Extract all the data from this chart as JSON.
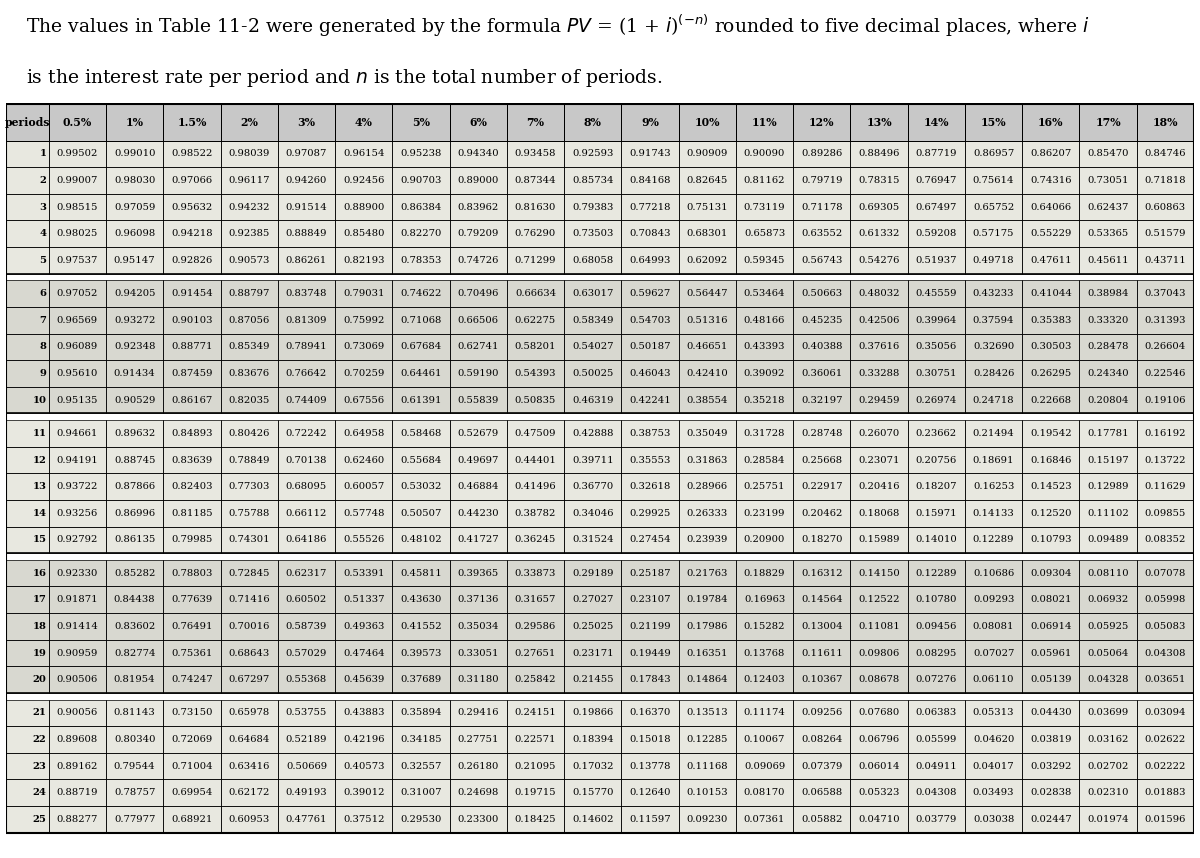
{
  "col_headers": [
    "periods",
    "0.5%",
    "1%",
    "1.5%",
    "2%",
    "3%",
    "4%",
    "5%",
    "6%",
    "7%",
    "8%",
    "9%",
    "10%",
    "11%",
    "12%",
    "13%",
    "14%",
    "15%",
    "16%",
    "17%",
    "18%"
  ],
  "row_data": [
    [
      1,
      0.99502,
      0.9901,
      0.98522,
      0.98039,
      0.97087,
      0.96154,
      0.95238,
      0.9434,
      0.93458,
      0.92593,
      0.91743,
      0.90909,
      0.9009,
      0.89286,
      0.88496,
      0.87719,
      0.86957,
      0.86207,
      0.8547,
      0.84746
    ],
    [
      2,
      0.99007,
      0.9803,
      0.97066,
      0.96117,
      0.9426,
      0.92456,
      0.90703,
      0.89,
      0.87344,
      0.85734,
      0.84168,
      0.82645,
      0.81162,
      0.79719,
      0.78315,
      0.76947,
      0.75614,
      0.74316,
      0.73051,
      0.71818
    ],
    [
      3,
      0.98515,
      0.97059,
      0.95632,
      0.94232,
      0.91514,
      0.889,
      0.86384,
      0.83962,
      0.8163,
      0.79383,
      0.77218,
      0.75131,
      0.73119,
      0.71178,
      0.69305,
      0.67497,
      0.65752,
      0.64066,
      0.62437,
      0.60863
    ],
    [
      4,
      0.98025,
      0.96098,
      0.94218,
      0.92385,
      0.88849,
      0.8548,
      0.8227,
      0.79209,
      0.7629,
      0.73503,
      0.70843,
      0.68301,
      0.65873,
      0.63552,
      0.61332,
      0.59208,
      0.57175,
      0.55229,
      0.53365,
      0.51579
    ],
    [
      5,
      0.97537,
      0.95147,
      0.92826,
      0.90573,
      0.86261,
      0.82193,
      0.78353,
      0.74726,
      0.71299,
      0.68058,
      0.64993,
      0.62092,
      0.59345,
      0.56743,
      0.54276,
      0.51937,
      0.49718,
      0.47611,
      0.45611,
      0.43711
    ],
    [
      6,
      0.97052,
      0.94205,
      0.91454,
      0.88797,
      0.83748,
      0.79031,
      0.74622,
      0.70496,
      0.66634,
      0.63017,
      0.59627,
      0.56447,
      0.53464,
      0.50663,
      0.48032,
      0.45559,
      0.43233,
      0.41044,
      0.38984,
      0.37043
    ],
    [
      7,
      0.96569,
      0.93272,
      0.90103,
      0.87056,
      0.81309,
      0.75992,
      0.71068,
      0.66506,
      0.62275,
      0.58349,
      0.54703,
      0.51316,
      0.48166,
      0.45235,
      0.42506,
      0.39964,
      0.37594,
      0.35383,
      0.3332,
      0.31393
    ],
    [
      8,
      0.96089,
      0.92348,
      0.88771,
      0.85349,
      0.78941,
      0.73069,
      0.67684,
      0.62741,
      0.58201,
      0.54027,
      0.50187,
      0.46651,
      0.43393,
      0.40388,
      0.37616,
      0.35056,
      0.3269,
      0.30503,
      0.28478,
      0.26604
    ],
    [
      9,
      0.9561,
      0.91434,
      0.87459,
      0.83676,
      0.76642,
      0.70259,
      0.64461,
      0.5919,
      0.54393,
      0.50025,
      0.46043,
      0.4241,
      0.39092,
      0.36061,
      0.33288,
      0.30751,
      0.28426,
      0.26295,
      0.2434,
      0.22546
    ],
    [
      10,
      0.95135,
      0.90529,
      0.86167,
      0.82035,
      0.74409,
      0.67556,
      0.61391,
      0.55839,
      0.50835,
      0.46319,
      0.42241,
      0.38554,
      0.35218,
      0.32197,
      0.29459,
      0.26974,
      0.24718,
      0.22668,
      0.20804,
      0.19106
    ],
    [
      11,
      0.94661,
      0.89632,
      0.84893,
      0.80426,
      0.72242,
      0.64958,
      0.58468,
      0.52679,
      0.47509,
      0.42888,
      0.38753,
      0.35049,
      0.31728,
      0.28748,
      0.2607,
      0.23662,
      0.21494,
      0.19542,
      0.17781,
      0.16192
    ],
    [
      12,
      0.94191,
      0.88745,
      0.83639,
      0.78849,
      0.70138,
      0.6246,
      0.55684,
      0.49697,
      0.44401,
      0.39711,
      0.35553,
      0.31863,
      0.28584,
      0.25668,
      0.23071,
      0.20756,
      0.18691,
      0.16846,
      0.15197,
      0.13722
    ],
    [
      13,
      0.93722,
      0.87866,
      0.82403,
      0.77303,
      0.68095,
      0.60057,
      0.53032,
      0.46884,
      0.41496,
      0.3677,
      0.32618,
      0.28966,
      0.25751,
      0.22917,
      0.20416,
      0.18207,
      0.16253,
      0.14523,
      0.12989,
      0.11629
    ],
    [
      14,
      0.93256,
      0.86996,
      0.81185,
      0.75788,
      0.66112,
      0.57748,
      0.50507,
      0.4423,
      0.38782,
      0.34046,
      0.29925,
      0.26333,
      0.23199,
      0.20462,
      0.18068,
      0.15971,
      0.14133,
      0.1252,
      0.11102,
      0.09855
    ],
    [
      15,
      0.92792,
      0.86135,
      0.79985,
      0.74301,
      0.64186,
      0.55526,
      0.48102,
      0.41727,
      0.36245,
      0.31524,
      0.27454,
      0.23939,
      0.209,
      0.1827,
      0.15989,
      0.1401,
      0.12289,
      0.10793,
      0.09489,
      0.08352
    ],
    [
      16,
      0.9233,
      0.85282,
      0.78803,
      0.72845,
      0.62317,
      0.53391,
      0.45811,
      0.39365,
      0.33873,
      0.29189,
      0.25187,
      0.21763,
      0.18829,
      0.16312,
      0.1415,
      0.12289,
      0.10686,
      0.09304,
      0.0811,
      0.07078
    ],
    [
      17,
      0.91871,
      0.84438,
      0.77639,
      0.71416,
      0.60502,
      0.51337,
      0.4363,
      0.37136,
      0.31657,
      0.27027,
      0.23107,
      0.19784,
      0.16963,
      0.14564,
      0.12522,
      0.1078,
      0.09293,
      0.08021,
      0.06932,
      0.05998
    ],
    [
      18,
      0.91414,
      0.83602,
      0.76491,
      0.70016,
      0.58739,
      0.49363,
      0.41552,
      0.35034,
      0.29586,
      0.25025,
      0.21199,
      0.17986,
      0.15282,
      0.13004,
      0.11081,
      0.09456,
      0.08081,
      0.06914,
      0.05925,
      0.05083
    ],
    [
      19,
      0.90959,
      0.82774,
      0.75361,
      0.68643,
      0.57029,
      0.47464,
      0.39573,
      0.33051,
      0.27651,
      0.23171,
      0.19449,
      0.16351,
      0.13768,
      0.11611,
      0.09806,
      0.08295,
      0.07027,
      0.05961,
      0.05064,
      0.04308
    ],
    [
      20,
      0.90506,
      0.81954,
      0.74247,
      0.67297,
      0.55368,
      0.45639,
      0.37689,
      0.3118,
      0.25842,
      0.21455,
      0.17843,
      0.14864,
      0.12403,
      0.10367,
      0.08678,
      0.07276,
      0.0611,
      0.05139,
      0.04328,
      0.03651
    ],
    [
      21,
      0.90056,
      0.81143,
      0.7315,
      0.65978,
      0.53755,
      0.43883,
      0.35894,
      0.29416,
      0.24151,
      0.19866,
      0.1637,
      0.13513,
      0.11174,
      0.09256,
      0.0768,
      0.06383,
      0.05313,
      0.0443,
      0.03699,
      0.03094
    ],
    [
      22,
      0.89608,
      0.8034,
      0.72069,
      0.64684,
      0.52189,
      0.42196,
      0.34185,
      0.27751,
      0.22571,
      0.18394,
      0.15018,
      0.12285,
      0.10067,
      0.08264,
      0.06796,
      0.05599,
      0.0462,
      0.03819,
      0.03162,
      0.02622
    ],
    [
      23,
      0.89162,
      0.79544,
      0.71004,
      0.63416,
      0.50669,
      0.40573,
      0.32557,
      0.2618,
      0.21095,
      0.17032,
      0.13778,
      0.11168,
      0.09069,
      0.07379,
      0.06014,
      0.04911,
      0.04017,
      0.03292,
      0.02702,
      0.02222
    ],
    [
      24,
      0.88719,
      0.78757,
      0.69954,
      0.62172,
      0.49193,
      0.39012,
      0.31007,
      0.24698,
      0.19715,
      0.1577,
      0.1264,
      0.10153,
      0.0817,
      0.06588,
      0.05323,
      0.04308,
      0.03493,
      0.02838,
      0.0231,
      0.01883
    ],
    [
      25,
      0.88277,
      0.77977,
      0.68921,
      0.60953,
      0.47761,
      0.37512,
      0.2953,
      0.233,
      0.18425,
      0.14602,
      0.11597,
      0.0923,
      0.07361,
      0.05882,
      0.0471,
      0.03779,
      0.03038,
      0.02447,
      0.01974,
      0.01596
    ]
  ],
  "header_bg": "#c8c8c8",
  "row_bg_odd_group": "#e8e8e0",
  "row_bg_even_group": "#d8d8d0",
  "border_color": "#000000",
  "text_color": "#000000",
  "font_size": 7.2,
  "header_font_size": 7.8,
  "title_fontsize": 13.5,
  "fig_width": 12.0,
  "fig_height": 8.58,
  "dpi": 100
}
